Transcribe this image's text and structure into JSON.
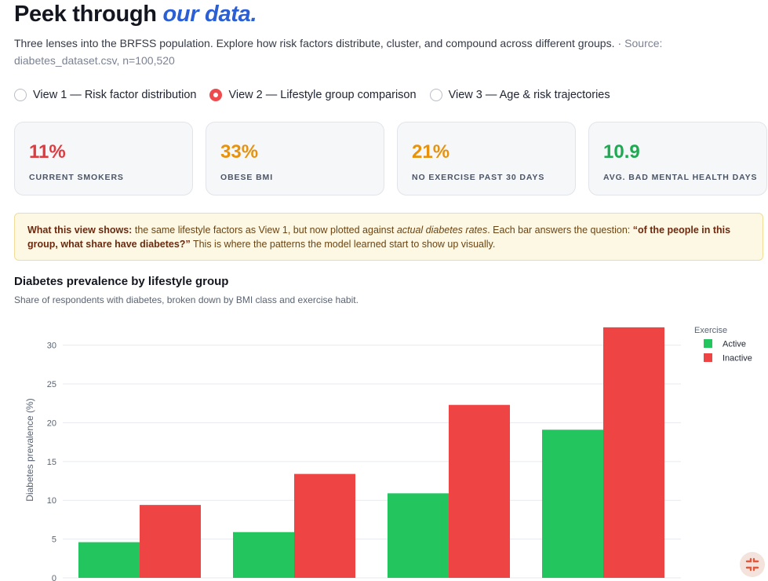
{
  "header": {
    "title_plain": "Peek through",
    "title_accent": "our data."
  },
  "subtitle": {
    "text": "Three lenses into the BRFSS population. Explore how risk factors distribute, cluster, and compound across different groups.",
    "separator": "·",
    "source": "Source: diabetes_dataset.csv, n=100,520"
  },
  "views": [
    {
      "label": "View 1 — Risk factor distribution",
      "selected": false
    },
    {
      "label": "View 2 — Lifestyle group comparison",
      "selected": true
    },
    {
      "label": "View 3 — Age & risk trajectories",
      "selected": false
    }
  ],
  "kpis": [
    {
      "value": "11%",
      "label": "CURRENT SMOKERS",
      "color": "#e0393e"
    },
    {
      "value": "33%",
      "label": "OBESE BMI",
      "color": "#e8920c"
    },
    {
      "value": "21%",
      "label": "NO EXERCISE PAST 30 DAYS",
      "color": "#e8920c"
    },
    {
      "value": "10.9",
      "label": "AVG. BAD MENTAL HEALTH DAYS",
      "color": "#1ea952"
    }
  ],
  "note": {
    "lead": "What this view shows:",
    "part1": "the same lifestyle factors as View 1, but now plotted against",
    "emph": "actual diabetes rates",
    "part2": ". Each bar answers the question:",
    "question": "“of the people in this group, what share have diabetes?”",
    "part3": "This is where the patterns the model learned start to show up visually."
  },
  "chart_section": {
    "title": "Diabetes prevalence by lifestyle group",
    "subtitle": "Share of respondents with diabetes, broken down by BMI class and exercise habit."
  },
  "chart_data": {
    "type": "bar",
    "categories": [
      "",
      "",
      "",
      ""
    ],
    "series": [
      {
        "name": "Active",
        "color": "#22c55e",
        "values": [
          4.6,
          5.9,
          10.9,
          19.1
        ]
      },
      {
        "name": "Inactive",
        "color": "#ef4444",
        "values": [
          9.4,
          13.4,
          22.3,
          32.3
        ]
      }
    ],
    "ylabel": "Diabetes prevalence (%)",
    "ylim": [
      0,
      33
    ],
    "yticks": [
      0,
      5,
      10,
      15,
      20,
      25,
      30
    ],
    "legend_title": "Exercise",
    "legend_position": "top-right",
    "grid": true
  }
}
